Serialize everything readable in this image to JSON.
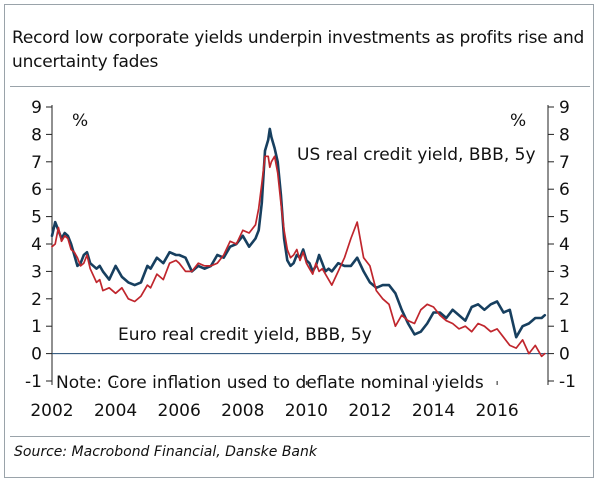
{
  "title": "Record low corporate yields underpin investments as profits rise and uncertainty fades",
  "source": "Source: Macrobond Financial, Danske Bank",
  "chart_data": {
    "type": "line",
    "xlabel": "",
    "ylabel_left": "%",
    "ylabel_right": "%",
    "xlim": [
      2002,
      2017.6
    ],
    "ylim": [
      -1,
      9
    ],
    "y_ticks": [
      -1,
      0,
      1,
      2,
      3,
      4,
      5,
      6,
      7,
      8,
      9
    ],
    "x_ticks": [
      2002,
      2004,
      2006,
      2008,
      2010,
      2012,
      2014,
      2016
    ],
    "x_tick_labels": [
      "2002",
      "2004",
      "2006",
      "2008",
      "2010",
      "2012",
      "2014",
      "2016"
    ],
    "zero_line": true,
    "note": "Note: Core inflation used to deflate nominal yields",
    "series": [
      {
        "name": "US real credit yield, BBB, 5y",
        "color": "#173f5f",
        "x": [
          2002.0,
          2002.1,
          2002.2,
          2002.3,
          2002.4,
          2002.5,
          2002.6,
          2002.7,
          2002.8,
          2002.9,
          2003.0,
          2003.1,
          2003.2,
          2003.4,
          2003.5,
          2003.6,
          2003.8,
          2004.0,
          2004.2,
          2004.4,
          2004.6,
          2004.8,
          2005.0,
          2005.1,
          2005.3,
          2005.5,
          2005.7,
          2005.9,
          2006.0,
          2006.2,
          2006.4,
          2006.6,
          2006.8,
          2007.0,
          2007.2,
          2007.4,
          2007.6,
          2007.8,
          2008.0,
          2008.2,
          2008.4,
          2008.5,
          2008.6,
          2008.7,
          2008.8,
          2008.85,
          2008.9,
          2009.0,
          2009.1,
          2009.2,
          2009.3,
          2009.4,
          2009.5,
          2009.6,
          2009.7,
          2009.8,
          2009.9,
          2010.0,
          2010.1,
          2010.2,
          2010.3,
          2010.4,
          2010.5,
          2010.6,
          2010.7,
          2010.8,
          2011.0,
          2011.2,
          2011.4,
          2011.6,
          2011.8,
          2012.0,
          2012.2,
          2012.4,
          2012.6,
          2012.8,
          2013.0,
          2013.2,
          2013.4,
          2013.6,
          2013.8,
          2014.0,
          2014.2,
          2014.4,
          2014.6,
          2014.8,
          2015.0,
          2015.2,
          2015.4,
          2015.6,
          2015.8,
          2016.0,
          2016.2,
          2016.4,
          2016.6,
          2016.8,
          2017.0,
          2017.2,
          2017.4,
          2017.5
        ],
        "values": [
          4.3,
          4.8,
          4.5,
          4.2,
          4.4,
          4.3,
          4.0,
          3.6,
          3.2,
          3.3,
          3.6,
          3.7,
          3.3,
          3.1,
          3.2,
          3.0,
          2.7,
          3.2,
          2.8,
          2.6,
          2.5,
          2.6,
          3.2,
          3.1,
          3.5,
          3.3,
          3.7,
          3.6,
          3.6,
          3.5,
          3.0,
          3.2,
          3.1,
          3.2,
          3.6,
          3.5,
          3.9,
          4.0,
          4.3,
          3.9,
          4.2,
          4.5,
          5.5,
          7.4,
          7.8,
          8.2,
          7.9,
          7.5,
          7.0,
          5.8,
          4.2,
          3.4,
          3.2,
          3.3,
          3.6,
          3.5,
          3.8,
          3.4,
          3.3,
          3.0,
          3.2,
          3.6,
          3.3,
          3.0,
          3.1,
          3.0,
          3.3,
          3.2,
          3.2,
          3.5,
          3.0,
          2.6,
          2.4,
          2.5,
          2.5,
          2.2,
          1.6,
          1.1,
          0.7,
          0.8,
          1.1,
          1.5,
          1.5,
          1.3,
          1.6,
          1.4,
          1.2,
          1.7,
          1.8,
          1.6,
          1.8,
          1.9,
          1.5,
          1.6,
          0.6,
          1.0,
          1.1,
          1.3,
          1.3,
          1.4
        ]
      },
      {
        "name": "Euro real credit yield, BBB, 5y",
        "color": "#c0262d",
        "x": [
          2002.0,
          2002.1,
          2002.2,
          2002.3,
          2002.4,
          2002.5,
          2002.6,
          2002.7,
          2002.8,
          2002.9,
          2003.0,
          2003.1,
          2003.2,
          2003.4,
          2003.5,
          2003.6,
          2003.8,
          2004.0,
          2004.2,
          2004.4,
          2004.6,
          2004.8,
          2005.0,
          2005.1,
          2005.3,
          2005.5,
          2005.7,
          2005.9,
          2006.0,
          2006.2,
          2006.4,
          2006.6,
          2006.8,
          2007.0,
          2007.2,
          2007.4,
          2007.6,
          2007.8,
          2008.0,
          2008.2,
          2008.4,
          2008.5,
          2008.6,
          2008.7,
          2008.8,
          2008.85,
          2008.9,
          2009.0,
          2009.1,
          2009.2,
          2009.3,
          2009.4,
          2009.5,
          2009.6,
          2009.7,
          2009.8,
          2009.9,
          2010.0,
          2010.1,
          2010.2,
          2010.3,
          2010.4,
          2010.5,
          2010.6,
          2010.7,
          2010.8,
          2011.0,
          2011.2,
          2011.4,
          2011.6,
          2011.8,
          2012.0,
          2012.2,
          2012.4,
          2012.6,
          2012.8,
          2013.0,
          2013.2,
          2013.4,
          2013.6,
          2013.8,
          2014.0,
          2014.2,
          2014.4,
          2014.6,
          2014.8,
          2015.0,
          2015.2,
          2015.4,
          2015.6,
          2015.8,
          2016.0,
          2016.2,
          2016.4,
          2016.6,
          2016.8,
          2017.0,
          2017.2,
          2017.4,
          2017.5
        ],
        "values": [
          3.9,
          4.0,
          4.6,
          4.1,
          4.3,
          4.2,
          3.8,
          3.7,
          3.5,
          3.2,
          3.3,
          3.6,
          3.1,
          2.6,
          2.7,
          2.3,
          2.4,
          2.2,
          2.4,
          2.0,
          1.9,
          2.1,
          2.5,
          2.4,
          2.9,
          2.7,
          3.3,
          3.4,
          3.3,
          3.0,
          3.0,
          3.3,
          3.2,
          3.2,
          3.3,
          3.6,
          4.1,
          4.0,
          4.5,
          4.4,
          4.7,
          5.3,
          6.2,
          7.2,
          7.2,
          6.8,
          7.0,
          7.2,
          6.6,
          5.5,
          4.5,
          3.8,
          3.5,
          3.6,
          3.8,
          3.4,
          3.7,
          3.3,
          3.1,
          2.9,
          3.3,
          3.0,
          3.1,
          2.9,
          2.7,
          2.5,
          3.0,
          3.5,
          4.2,
          4.8,
          3.5,
          3.2,
          2.3,
          2.0,
          1.8,
          1.0,
          1.4,
          1.2,
          1.1,
          1.6,
          1.8,
          1.7,
          1.4,
          1.2,
          1.1,
          0.9,
          1.0,
          0.8,
          1.1,
          1.0,
          0.8,
          0.9,
          0.6,
          0.3,
          0.2,
          0.5,
          0.0,
          0.3,
          -0.1,
          0.0
        ]
      }
    ],
    "annotations": [
      {
        "text": "US real credit yield, BBB, 5y",
        "series": "US real credit yield, BBB, 5y"
      },
      {
        "text": "Euro real credit yield, BBB, 5y",
        "series": "Euro real credit yield, BBB, 5y"
      }
    ]
  }
}
